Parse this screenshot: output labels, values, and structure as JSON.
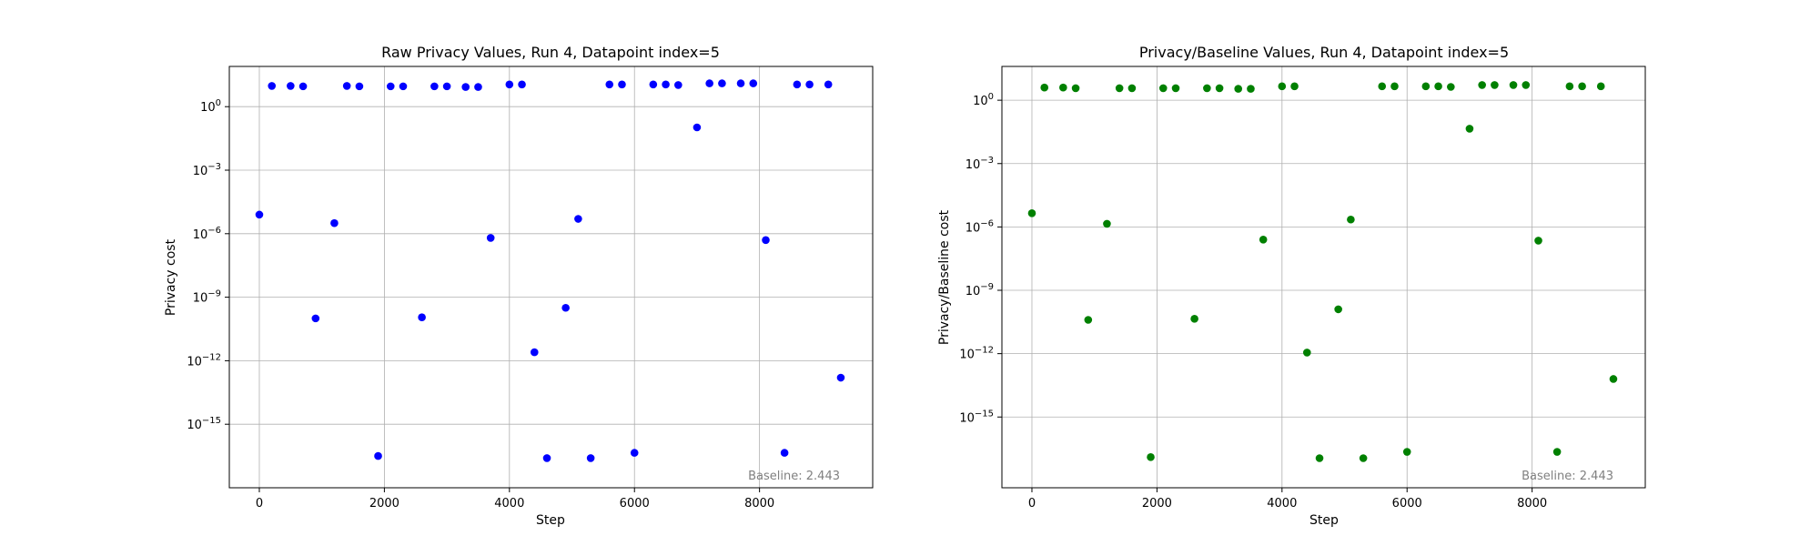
{
  "chart_data": [
    {
      "type": "scatter",
      "title": "Raw Privacy Values, Run 4, Datapoint index=5",
      "xlabel": "Step",
      "ylabel": "Privacy cost",
      "y_scale": "log",
      "grid": true,
      "xlim": [
        -480,
        9810
      ],
      "ylim_log10": [
        -18.0,
        1.9
      ],
      "x_ticks": [
        0,
        2000,
        4000,
        6000,
        8000
      ],
      "x_tick_labels": [
        "0",
        "2000",
        "4000",
        "6000",
        "8000"
      ],
      "y_ticks_log10": [
        -15,
        -12,
        -9,
        -6,
        -3,
        0
      ],
      "y_tick_labels": [
        "10^-15",
        "10^-12",
        "10^-9",
        "10^-6",
        "10^-3",
        "10^0"
      ],
      "color": "#0000ff",
      "annotation": "Baseline: 2.443",
      "series": [
        {
          "x": [
            0,
            200,
            500,
            700,
            900,
            1200,
            1400,
            1600,
            1900,
            2100,
            2300,
            2600,
            2800,
            3000,
            3300,
            3500,
            3700,
            4000,
            4200,
            4400,
            4600,
            4900,
            5100,
            5300,
            5600,
            5800,
            6000,
            6300,
            6500,
            6700,
            7000,
            7200,
            7400,
            7700,
            7900,
            8100,
            8400,
            8600,
            8800,
            9100,
            9300
          ],
          "log10_y": [
            -5.1,
            0.98,
            0.98,
            0.96,
            -10.0,
            -5.5,
            0.98,
            0.96,
            -16.5,
            0.96,
            0.96,
            -9.95,
            0.96,
            0.96,
            0.93,
            0.93,
            -6.2,
            1.05,
            1.05,
            -11.6,
            -16.6,
            -9.5,
            -5.3,
            -16.6,
            1.05,
            1.05,
            -16.35,
            1.05,
            1.05,
            1.02,
            -0.98,
            1.1,
            1.1,
            1.1,
            1.1,
            -6.3,
            -16.35,
            1.05,
            1.05,
            1.05,
            -12.8
          ]
        }
      ]
    },
    {
      "type": "scatter",
      "title": "Privacy/Baseline Values, Run 4, Datapoint index=5",
      "xlabel": "Step",
      "ylabel": "Privacy/Baseline cost",
      "y_scale": "log",
      "grid": true,
      "xlim": [
        -480,
        9810
      ],
      "ylim_log10": [
        -18.35,
        1.6
      ],
      "x_ticks": [
        0,
        2000,
        4000,
        6000,
        8000
      ],
      "x_tick_labels": [
        "0",
        "2000",
        "4000",
        "6000",
        "8000"
      ],
      "y_ticks_log10": [
        -15,
        -12,
        -9,
        -6,
        -3,
        0
      ],
      "y_tick_labels": [
        "10^-15",
        "10^-12",
        "10^-9",
        "10^-6",
        "10^-3",
        "10^0"
      ],
      "color": "#008000",
      "annotation": "Baseline: 2.443",
      "series": [
        {
          "x": [
            0,
            200,
            500,
            700,
            900,
            1200,
            1400,
            1600,
            1900,
            2100,
            2300,
            2600,
            2800,
            3000,
            3300,
            3500,
            3700,
            4000,
            4200,
            4400,
            4600,
            4900,
            5100,
            5300,
            5600,
            5800,
            6000,
            6300,
            6500,
            6700,
            7000,
            7200,
            7400,
            7700,
            7900,
            8100,
            8400,
            8600,
            8800,
            9100,
            9300
          ],
          "log10_y": [
            -5.35,
            0.6,
            0.6,
            0.57,
            -10.4,
            -5.85,
            0.57,
            0.57,
            -16.9,
            0.57,
            0.57,
            -10.35,
            0.57,
            0.57,
            0.54,
            0.54,
            -6.6,
            0.66,
            0.66,
            -11.95,
            -16.95,
            -9.9,
            -5.65,
            -16.95,
            0.66,
            0.66,
            -16.65,
            0.66,
            0.66,
            0.63,
            -1.35,
            0.72,
            0.72,
            0.72,
            0.72,
            -6.65,
            -16.65,
            0.66,
            0.66,
            0.66,
            -13.2
          ]
        }
      ]
    }
  ]
}
